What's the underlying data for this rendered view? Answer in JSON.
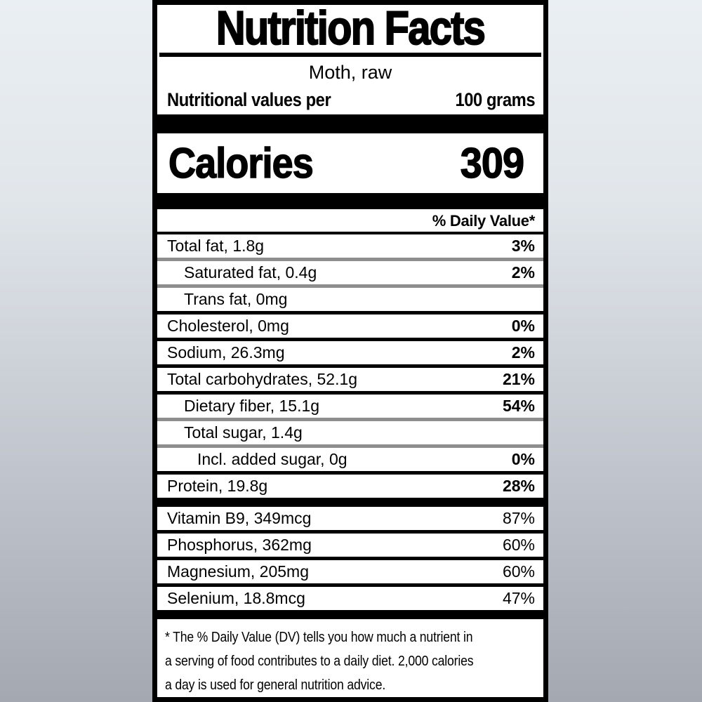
{
  "colors": {
    "ink": "#000000",
    "label_background": "#ffffff",
    "divider_gray": "#8e8e8e",
    "page_gradient_top": "#eaeff3",
    "page_gradient_bottom": "#a4a8b1"
  },
  "label": {
    "title": "Nutrition Facts",
    "subtitle": "Moth, raw",
    "serving": {
      "label": "Nutritional values per",
      "value": "100 grams"
    },
    "calories": {
      "label": "Calories",
      "value": "309"
    },
    "dv_header": "% Daily Value*",
    "rows": [
      {
        "name": "Total fat, 1.8g",
        "dv": "3%"
      },
      {
        "name": "Saturated fat, 0.4g",
        "dv": "2%"
      },
      {
        "name": "Trans fat, 0mg",
        "dv": ""
      },
      {
        "name": "Cholesterol, 0mg",
        "dv": "0%"
      },
      {
        "name": "Sodium, 26.3mg",
        "dv": "2%"
      },
      {
        "name": "Total carbohydrates, 52.1g",
        "dv": "21%"
      },
      {
        "name": "Dietary fiber, 15.1g",
        "dv": "54%"
      },
      {
        "name": "Total sugar, 1.4g",
        "dv": ""
      },
      {
        "name": "Incl. added sugar, 0g",
        "dv": "0%"
      },
      {
        "name": "Protein, 19.8g",
        "dv": "28%"
      },
      {
        "name": "Vitamin B9, 349mcg",
        "dv": "87%"
      },
      {
        "name": "Phosphorus, 362mg",
        "dv": "60%"
      },
      {
        "name": "Magnesium, 205mg",
        "dv": "60%"
      },
      {
        "name": "Selenium, 18.8mcg",
        "dv": "47%"
      }
    ],
    "footnote_lines": [
      "* The % Daily Value (DV) tells you how much a nutrient in",
      "a serving of food contributes to a daily diet. 2,000 calories",
      "a day is used for general nutrition advice."
    ]
  }
}
